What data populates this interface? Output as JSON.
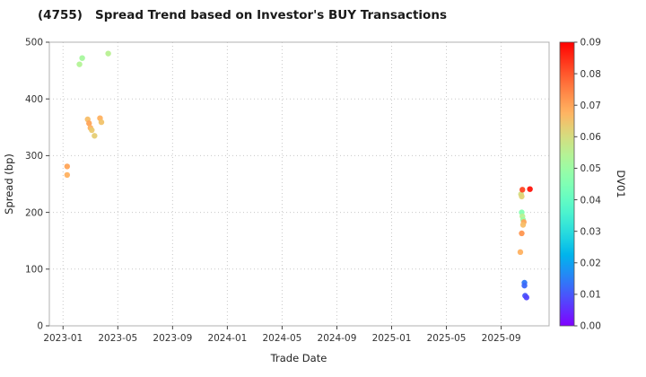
{
  "chart_data": {
    "type": "scatter",
    "title": "(4755)   Spread Trend based on Investor's BUY Transactions",
    "xlabel": "Trade Date",
    "ylabel": "Spread (bp)",
    "colorbar_label": "DV01",
    "colormap": "rainbow",
    "grid": true,
    "xlim": [
      0,
      36.5
    ],
    "ylim": [
      0,
      500
    ],
    "x_tick_positions": [
      1,
      5,
      9,
      13,
      17,
      21,
      25,
      29,
      33
    ],
    "x_tick_labels": [
      "2023-01",
      "2023-05",
      "2023-09",
      "2024-01",
      "2024-05",
      "2024-09",
      "2025-01",
      "2025-05",
      "2025-09"
    ],
    "y_ticks": [
      0,
      100,
      200,
      300,
      400,
      500
    ],
    "color_range": [
      0,
      0.09
    ],
    "colorbar_tick_labels": [
      "0.00",
      "0.01",
      "0.02",
      "0.03",
      "0.04",
      "0.05",
      "0.06",
      "0.07",
      "0.08",
      "0.09"
    ],
    "points": [
      {
        "x": 1.3,
        "y": 281,
        "c": 0.07
      },
      {
        "x": 1.3,
        "y": 266,
        "c": 0.068
      },
      {
        "x": 2.2,
        "y": 461,
        "c": 0.054
      },
      {
        "x": 2.4,
        "y": 472,
        "c": 0.052
      },
      {
        "x": 2.8,
        "y": 364,
        "c": 0.066
      },
      {
        "x": 2.9,
        "y": 357,
        "c": 0.07
      },
      {
        "x": 3.0,
        "y": 349,
        "c": 0.068
      },
      {
        "x": 3.1,
        "y": 345,
        "c": 0.064
      },
      {
        "x": 3.3,
        "y": 335,
        "c": 0.063
      },
      {
        "x": 3.7,
        "y": 366,
        "c": 0.068
      },
      {
        "x": 3.8,
        "y": 359,
        "c": 0.065
      },
      {
        "x": 4.3,
        "y": 480,
        "c": 0.055
      },
      {
        "x": 34.45,
        "y": 232,
        "c": 0.06
      },
      {
        "x": 34.5,
        "y": 228,
        "c": 0.062
      },
      {
        "x": 34.55,
        "y": 240,
        "c": 0.082
      },
      {
        "x": 35.1,
        "y": 241,
        "c": 0.088
      },
      {
        "x": 34.5,
        "y": 200,
        "c": 0.046
      },
      {
        "x": 34.55,
        "y": 193,
        "c": 0.055
      },
      {
        "x": 34.6,
        "y": 187,
        "c": 0.05
      },
      {
        "x": 34.65,
        "y": 183,
        "c": 0.07
      },
      {
        "x": 34.6,
        "y": 178,
        "c": 0.066
      },
      {
        "x": 34.5,
        "y": 163,
        "c": 0.072
      },
      {
        "x": 34.4,
        "y": 130,
        "c": 0.068
      },
      {
        "x": 34.7,
        "y": 76,
        "c": 0.014
      },
      {
        "x": 34.7,
        "y": 71,
        "c": 0.012
      },
      {
        "x": 34.75,
        "y": 53,
        "c": 0.01
      },
      {
        "x": 34.85,
        "y": 50,
        "c": 0.008
      }
    ],
    "style_colors": {
      "grid": "#c8c8c8",
      "frame": "#b0b0b0",
      "tick_text": "#333333",
      "label_text": "#222222"
    }
  }
}
